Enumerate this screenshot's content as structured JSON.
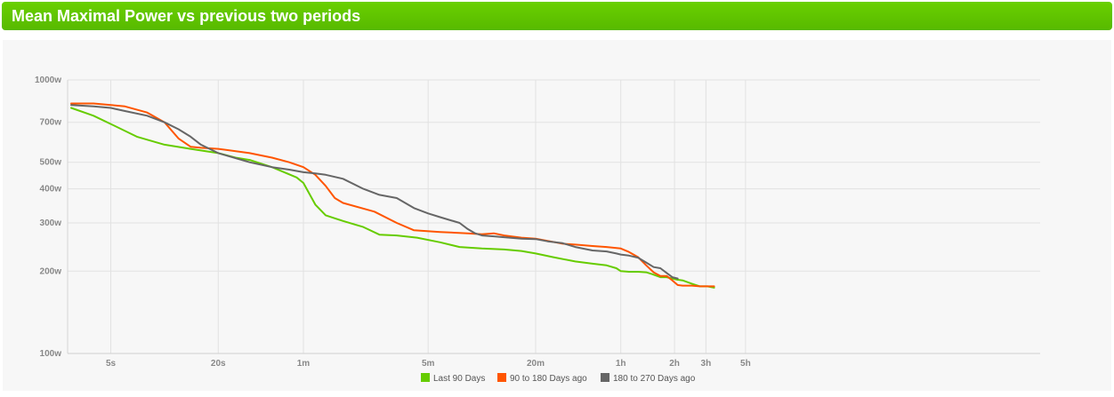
{
  "header": {
    "title": "Mean Maximal Power vs previous two periods"
  },
  "chart_data": {
    "type": "line",
    "x_scale": "log",
    "y_scale": "log",
    "x_unit": "seconds",
    "y_unit": "watts",
    "xlim": [
      3,
      18000
    ],
    "ylim": [
      100,
      1000
    ],
    "grid": true,
    "legend_position": "bottom-center",
    "x_ticks": [
      {
        "value": 5,
        "label": "5s"
      },
      {
        "value": 20,
        "label": "20s"
      },
      {
        "value": 60,
        "label": "1m"
      },
      {
        "value": 300,
        "label": "5m"
      },
      {
        "value": 1200,
        "label": "20m"
      },
      {
        "value": 3600,
        "label": "1h"
      },
      {
        "value": 7200,
        "label": "2h"
      },
      {
        "value": 10800,
        "label": "3h"
      },
      {
        "value": 18000,
        "label": "5h"
      }
    ],
    "y_ticks": [
      {
        "value": 100,
        "label": "100w"
      },
      {
        "value": 200,
        "label": "200w"
      },
      {
        "value": 300,
        "label": "300w"
      },
      {
        "value": 400,
        "label": "400w"
      },
      {
        "value": 500,
        "label": "500w"
      },
      {
        "value": 700,
        "label": "700w"
      },
      {
        "value": 1000,
        "label": "1000w"
      }
    ],
    "series": [
      {
        "name": "Last 90 Days",
        "color": "#66cc00",
        "points": [
          [
            3,
            790
          ],
          [
            4,
            740
          ],
          [
            5,
            690
          ],
          [
            7,
            620
          ],
          [
            10,
            580
          ],
          [
            14,
            560
          ],
          [
            20,
            540
          ],
          [
            25,
            520
          ],
          [
            30,
            510
          ],
          [
            40,
            480
          ],
          [
            55,
            440
          ],
          [
            60,
            420
          ],
          [
            70,
            350
          ],
          [
            80,
            320
          ],
          [
            100,
            305
          ],
          [
            130,
            290
          ],
          [
            160,
            272
          ],
          [
            200,
            270
          ],
          [
            260,
            265
          ],
          [
            350,
            255
          ],
          [
            450,
            245
          ],
          [
            600,
            242
          ],
          [
            800,
            240
          ],
          [
            1000,
            237
          ],
          [
            1200,
            232
          ],
          [
            1500,
            225
          ],
          [
            2000,
            217
          ],
          [
            2500,
            213
          ],
          [
            3000,
            210
          ],
          [
            3400,
            205
          ],
          [
            3600,
            200
          ],
          [
            4000,
            199
          ],
          [
            4500,
            199
          ],
          [
            5000,
            198
          ],
          [
            5400,
            195
          ],
          [
            6000,
            190
          ],
          [
            6500,
            190
          ],
          [
            7000,
            188
          ],
          [
            7500,
            186
          ],
          [
            8000,
            185
          ],
          [
            9000,
            180
          ],
          [
            10000,
            176
          ],
          [
            11000,
            176
          ],
          [
            12000,
            174
          ]
        ]
      },
      {
        "name": "90 to 180 Days ago",
        "color": "#ff5500",
        "points": [
          [
            3,
            820
          ],
          [
            4,
            820
          ],
          [
            5,
            810
          ],
          [
            6,
            800
          ],
          [
            8,
            760
          ],
          [
            10,
            700
          ],
          [
            12,
            610
          ],
          [
            14,
            570
          ],
          [
            16,
            565
          ],
          [
            20,
            560
          ],
          [
            30,
            540
          ],
          [
            40,
            520
          ],
          [
            50,
            500
          ],
          [
            60,
            480
          ],
          [
            70,
            450
          ],
          [
            80,
            410
          ],
          [
            90,
            370
          ],
          [
            100,
            355
          ],
          [
            150,
            330
          ],
          [
            200,
            300
          ],
          [
            250,
            282
          ],
          [
            350,
            278
          ],
          [
            500,
            275
          ],
          [
            600,
            273
          ],
          [
            700,
            275
          ],
          [
            800,
            270
          ],
          [
            1000,
            265
          ],
          [
            1200,
            263
          ],
          [
            1400,
            258
          ],
          [
            1700,
            252
          ],
          [
            2000,
            250
          ],
          [
            2500,
            247
          ],
          [
            3000,
            245
          ],
          [
            3400,
            243
          ],
          [
            3600,
            242
          ],
          [
            4000,
            235
          ],
          [
            4500,
            225
          ],
          [
            5000,
            210
          ],
          [
            5500,
            198
          ],
          [
            6000,
            192
          ],
          [
            6500,
            192
          ],
          [
            7000,
            185
          ],
          [
            7500,
            178
          ],
          [
            8000,
            177
          ],
          [
            9000,
            177
          ],
          [
            10000,
            176
          ],
          [
            11000,
            176
          ],
          [
            12000,
            176
          ]
        ]
      },
      {
        "name": "180 to 270 Days ago",
        "color": "#666666",
        "points": [
          [
            3,
            810
          ],
          [
            4,
            800
          ],
          [
            5,
            790
          ],
          [
            6,
            770
          ],
          [
            8,
            740
          ],
          [
            10,
            700
          ],
          [
            12,
            660
          ],
          [
            14,
            620
          ],
          [
            16,
            580
          ],
          [
            20,
            540
          ],
          [
            30,
            500
          ],
          [
            40,
            480
          ],
          [
            50,
            470
          ],
          [
            60,
            460
          ],
          [
            70,
            455
          ],
          [
            80,
            450
          ],
          [
            100,
            435
          ],
          [
            130,
            400
          ],
          [
            160,
            380
          ],
          [
            200,
            370
          ],
          [
            250,
            340
          ],
          [
            300,
            325
          ],
          [
            350,
            315
          ],
          [
            450,
            300
          ],
          [
            500,
            285
          ],
          [
            550,
            275
          ],
          [
            600,
            270
          ],
          [
            700,
            268
          ],
          [
            800,
            266
          ],
          [
            1000,
            263
          ],
          [
            1200,
            262
          ],
          [
            1400,
            257
          ],
          [
            1700,
            253
          ],
          [
            2000,
            245
          ],
          [
            2500,
            238
          ],
          [
            3000,
            236
          ],
          [
            3400,
            232
          ],
          [
            3600,
            230
          ],
          [
            4000,
            228
          ],
          [
            4500,
            224
          ],
          [
            5000,
            215
          ],
          [
            5500,
            207
          ],
          [
            6000,
            205
          ],
          [
            6500,
            197
          ],
          [
            7000,
            190
          ],
          [
            7500,
            188
          ]
        ]
      }
    ]
  }
}
